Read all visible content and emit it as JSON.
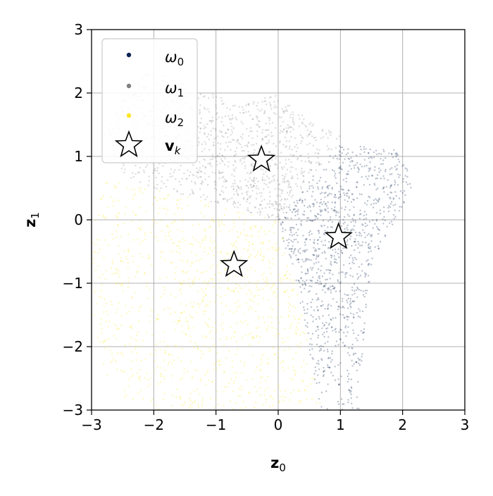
{
  "chart_data": {
    "type": "scatter",
    "title": "",
    "xlabel": {
      "base": "z",
      "sub": "0"
    },
    "ylabel": {
      "base": "z",
      "sub": "1"
    },
    "xlim": [
      -3,
      3
    ],
    "ylim": [
      -3,
      3
    ],
    "xticks": [
      -3,
      -2,
      -1,
      0,
      1,
      2,
      3
    ],
    "yticks": [
      -3,
      -2,
      -1,
      0,
      1,
      2,
      3
    ],
    "xtick_labels": [
      "−3",
      "−2",
      "−1",
      "0",
      "1",
      "2",
      "3"
    ],
    "ytick_labels": [
      "−3",
      "−2",
      "−1",
      "0",
      "1",
      "2",
      "3"
    ],
    "grid": true,
    "legend_position": "top-left",
    "series": [
      {
        "name": "ω0",
        "legend_base": "ω",
        "legend_sub": "0",
        "color": "#0b2350",
        "density": "scattered cloud of small translucent points",
        "region": [
          [
            0,
            0
          ],
          [
            0.4,
            0.5
          ],
          [
            1.0,
            1.2
          ],
          [
            1.9,
            1.1
          ],
          [
            2.2,
            0.6
          ],
          [
            2.0,
            0.2
          ],
          [
            1.5,
            -0.7
          ],
          [
            1.4,
            -1.7
          ],
          [
            1.3,
            -2.6
          ],
          [
            1.3,
            -3.0
          ],
          [
            0.7,
            -3.0
          ],
          [
            0.6,
            -2.6
          ],
          [
            0.4,
            -1.5
          ]
        ]
      },
      {
        "name": "ω1",
        "legend_base": "ω",
        "legend_sub": "1",
        "color": "#808080",
        "density": "scattered cloud of small translucent points",
        "region": [
          [
            0,
            0
          ],
          [
            -2.4,
            0.6
          ],
          [
            -2.8,
            1.3
          ],
          [
            -2.5,
            2.0
          ],
          [
            -2.1,
            2.35
          ],
          [
            -1.3,
            2.1
          ],
          [
            -0.6,
            1.8
          ],
          [
            0.0,
            2.0
          ],
          [
            0.6,
            1.5
          ],
          [
            1.1,
            1.3
          ],
          [
            0.8,
            1.0
          ],
          [
            0.4,
            0.5
          ]
        ]
      },
      {
        "name": "ω2",
        "legend_base": "ω",
        "legend_sub": "2",
        "color": "#fde725",
        "density": "scattered cloud of small translucent points",
        "region": [
          [
            0,
            0
          ],
          [
            0.4,
            -1.5
          ],
          [
            0.6,
            -2.6
          ],
          [
            0.7,
            -3.0
          ],
          [
            -2.3,
            -3.0
          ],
          [
            -2.8,
            -2.4
          ],
          [
            -3.0,
            -1.4
          ],
          [
            -3.0,
            -0.2
          ],
          [
            -2.8,
            0.6
          ],
          [
            -2.4,
            0.6
          ]
        ]
      }
    ],
    "markers": {
      "name": "v_k",
      "legend_base": "v",
      "legend_sub": "k",
      "symbol": "star",
      "fill": "#ffffff",
      "stroke": "#000000",
      "points": [
        [
          -0.27,
          0.95
        ],
        [
          0.97,
          -0.27
        ],
        [
          -0.71,
          -0.71
        ]
      ]
    }
  }
}
